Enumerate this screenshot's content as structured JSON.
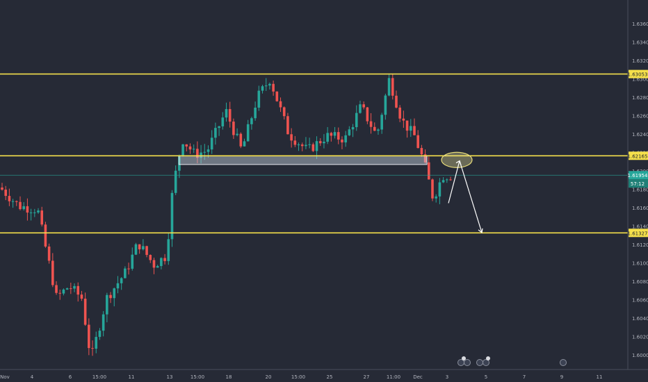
{
  "chart_data": {
    "type": "candlestick",
    "ylim": [
      1.5985,
      1.6385
    ],
    "y_ticks": [
      "1.63600",
      "1.63400",
      "1.63200",
      "1.63000",
      "1.62800",
      "1.62600",
      "1.62400",
      "1.62200",
      "1.62000",
      "1.61800",
      "1.61600",
      "1.61400",
      "1.61200",
      "1.61000",
      "1.60800",
      "1.60600",
      "1.60400",
      "1.60200",
      "1.60000"
    ],
    "x_ticks": [
      "Nov",
      "4",
      "6",
      "15:00",
      "11",
      "13",
      "15:00",
      "18",
      "20",
      "15:00",
      "25",
      "27",
      "11:00",
      "Dec",
      "3",
      "5",
      "7",
      "9",
      "11"
    ],
    "levels": [
      {
        "label": "1.63053",
        "value": 1.63053,
        "color": "#f5e04b"
      },
      {
        "label": "1.62165",
        "value": 1.62165,
        "color": "#f5e04b"
      },
      {
        "label": "1.61327",
        "value": 1.61327,
        "color": "#f5e04b"
      }
    ],
    "current_price": {
      "label": "1.61954",
      "value": 1.61954,
      "color": "#26a69a"
    },
    "countdown": "57:12",
    "support_zone": {
      "from": 1.6207,
      "to": 1.62165,
      "x_start": 0.285,
      "x_end": 0.68
    },
    "up_color": "#26a69a",
    "down_color": "#ef5350",
    "candle_series": "zigzag",
    "grid": false,
    "anchors": [
      [
        0,
        1.6182
      ],
      [
        0.03,
        1.6162
      ],
      [
        0.06,
        1.6158
      ],
      [
        0.07,
        1.6125
      ],
      [
        0.09,
        1.6062
      ],
      [
        0.11,
        1.6075
      ],
      [
        0.13,
        1.6062
      ],
      [
        0.145,
        1.5995
      ],
      [
        0.17,
        1.6062
      ],
      [
        0.2,
        1.609
      ],
      [
        0.22,
        1.6122
      ],
      [
        0.245,
        1.6098
      ],
      [
        0.265,
        1.6108
      ],
      [
        0.275,
        1.618
      ],
      [
        0.29,
        1.6235
      ],
      [
        0.31,
        1.6218
      ],
      [
        0.33,
        1.6222
      ],
      [
        0.36,
        1.6265
      ],
      [
        0.385,
        1.6222
      ],
      [
        0.41,
        1.628
      ],
      [
        0.43,
        1.63
      ],
      [
        0.46,
        1.624
      ],
      [
        0.49,
        1.6222
      ],
      [
        0.52,
        1.6238
      ],
      [
        0.55,
        1.6235
      ],
      [
        0.575,
        1.627
      ],
      [
        0.6,
        1.6238
      ],
      [
        0.62,
        1.63
      ],
      [
        0.64,
        1.6255
      ],
      [
        0.66,
        1.6238
      ],
      [
        0.675,
        1.621
      ],
      [
        0.69,
        1.617
      ],
      [
        0.705,
        1.6195
      ]
    ]
  }
}
